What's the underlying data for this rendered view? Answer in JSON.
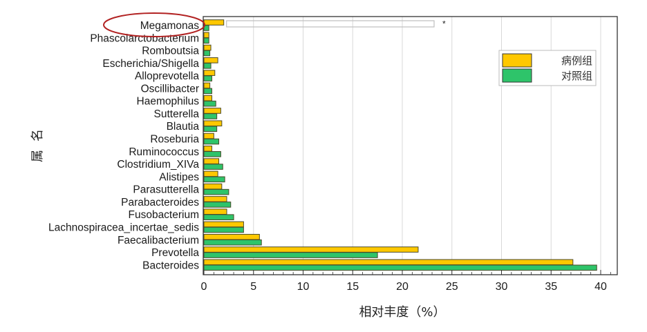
{
  "chart_data": {
    "type": "bar",
    "orientation": "horizontal",
    "title": "",
    "xlabel": "相对丰度（%）",
    "ylabel": "属名",
    "xlim": [
      0,
      42
    ],
    "xticks": [
      0,
      5,
      10,
      15,
      20,
      25,
      30,
      35,
      40
    ],
    "grid": true,
    "legend_position": "upper right",
    "categories": [
      "Megamonas",
      "Phascolarctobacterium",
      "Romboutsia",
      "Escherichia/Shigella",
      "Alloprevotella",
      "Oscillibacter",
      "Haemophilus",
      "Sutterella",
      "Blautia",
      "Roseburia",
      "Ruminococcus",
      "Clostridium_XIVa",
      "Alistipes",
      "Parasutterella",
      "Parabacteroides",
      "Fusobacterium",
      "Lachnospiracea_incertae_sedis",
      "Faecalibacterium",
      "Prevotella",
      "Bacteroides"
    ],
    "series": [
      {
        "name": "病例组",
        "color": "#FFC800",
        "values": [
          2.0,
          0.5,
          0.7,
          1.4,
          1.1,
          0.6,
          0.8,
          1.7,
          1.8,
          1.0,
          0.8,
          1.5,
          1.4,
          1.8,
          2.3,
          2.3,
          4.0,
          5.6,
          21.6,
          37.2
        ]
      },
      {
        "name": "对照组",
        "color": "#2EC46A",
        "values": [
          0.5,
          0.5,
          0.6,
          0.7,
          0.8,
          0.8,
          1.2,
          1.3,
          1.3,
          1.5,
          1.7,
          1.9,
          2.1,
          2.5,
          2.7,
          3.0,
          4.0,
          5.8,
          17.5,
          39.6
        ]
      }
    ],
    "annotations": [
      {
        "type": "significance-bracket",
        "category": "Megamonas",
        "label": "*"
      },
      {
        "type": "ellipse-highlight",
        "category": "Megamonas",
        "color": "#B22222"
      }
    ]
  }
}
